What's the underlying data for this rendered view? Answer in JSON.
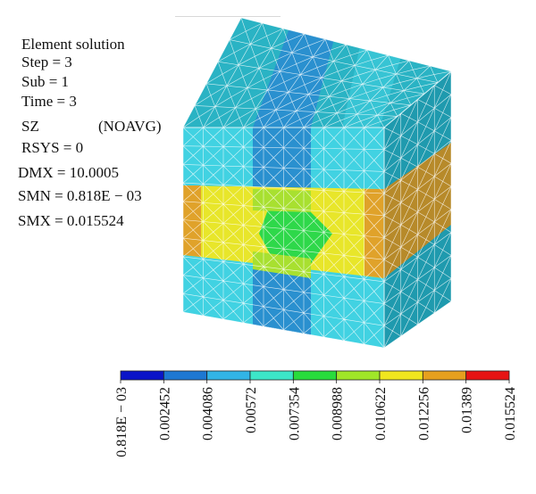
{
  "info": {
    "title": "Element solution",
    "step": "Step = 3",
    "sub": "Sub = 1",
    "time": "Time = 3",
    "sz_label": "SZ",
    "sz_mode": "(NOAVG)",
    "rsys": "RSYS = 0",
    "dmx": "DMX = 10.0005",
    "smn": "SMN = 0.818E − 03",
    "smx": "SMX = 0.015524"
  },
  "legend": {
    "colors": [
      "#0a14c8",
      "#1e78d2",
      "#32b4e6",
      "#3ce6c8",
      "#28dc3c",
      "#a0e628",
      "#f0e61e",
      "#e6a01e",
      "#e61414"
    ],
    "labels": [
      "0.818E − 03",
      "0.002452",
      "0.004086",
      "0.00572",
      "0.007354",
      "0.008988",
      "0.010622",
      "0.012256",
      "0.01389",
      "0.015524"
    ]
  },
  "cube_colors": {
    "teal": "#2ab3c4",
    "cyan": "#41d2e2",
    "blue_stripe": "#2a90cf",
    "yellow": "#e8e62a",
    "orange": "#e0a22a",
    "green": "#2ed84a",
    "lime": "#a8e030",
    "side_teal": "#1f9aae",
    "side_orange": "#b78a2a",
    "mesh": "#ffffff"
  }
}
